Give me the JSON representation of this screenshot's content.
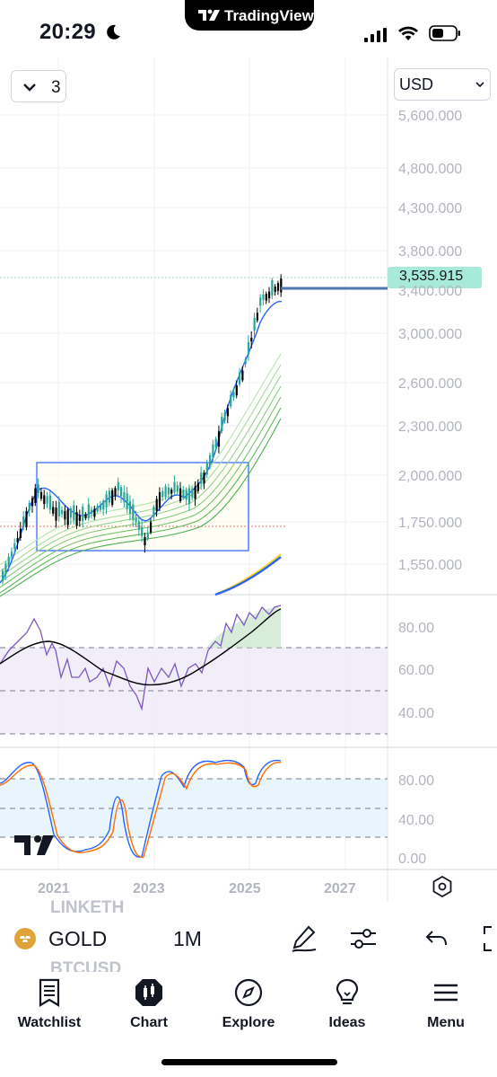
{
  "status_bar": {
    "time": "20:29"
  },
  "dynamic_island": {
    "label": "TradingView"
  },
  "chart": {
    "interval_chevron_icon": "chevron-down-icon",
    "interval_value": "3",
    "currency": "USD",
    "current_price": "3,535.915",
    "price_axis_labels": [
      "5,600.000",
      "4,800.000",
      "4,300.000",
      "3,800.000",
      "3,400.000",
      "3,000.000",
      "2,600.000",
      "2,300.000",
      "2,000.000",
      "1,750.000",
      "1,550.000"
    ],
    "rsi_axis_labels": [
      "80.00",
      "60.00",
      "40.00"
    ],
    "stoch_axis_labels": [
      "80.00",
      "40.00",
      "0.00"
    ],
    "time_axis_labels": [
      "2021",
      "2023",
      "2025",
      "2027"
    ],
    "colors": {
      "candle_up": "#26a69a",
      "candle_down": "#000000",
      "price_line": "#4a78b0",
      "price_badge": "#a8ead9",
      "box": "#2962ff",
      "rsi_line": "#7e57c2",
      "rsi_band": "#ede7f6",
      "stoch_k": "#2962ff",
      "stoch_d": "#ff6d00",
      "stoch_band": "#e3f2fd"
    }
  },
  "toolbar": {
    "ghost_symbol_top": "LINKETH",
    "ghost_symbol_bottom": "BTCUSD",
    "symbol": "GOLD",
    "timeframe": "1M"
  },
  "bottom_nav": {
    "items": [
      {
        "label": "Watchlist",
        "icon": "watchlist-icon"
      },
      {
        "label": "Chart",
        "icon": "chart-icon"
      },
      {
        "label": "Explore",
        "icon": "compass-icon"
      },
      {
        "label": "Ideas",
        "icon": "lightbulb-icon"
      },
      {
        "label": "Menu",
        "icon": "menu-icon"
      }
    ]
  }
}
